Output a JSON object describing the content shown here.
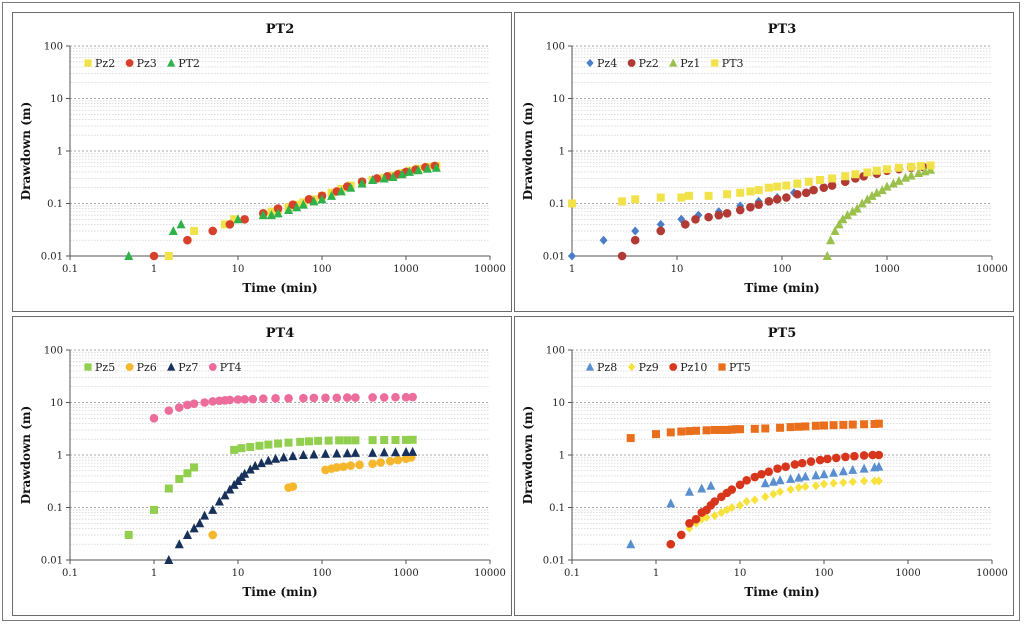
{
  "chart_data": [
    {
      "type": "scatter",
      "title": "PT2",
      "xlabel": "Time (min)",
      "ylabel": "Drawdown (m)",
      "xscale": "log",
      "yscale": "log",
      "xlim": [
        0.1,
        10000
      ],
      "ylim": [
        0.01,
        100
      ],
      "xticks": [
        "0.1",
        "1",
        "10",
        "100",
        "1000",
        "10000"
      ],
      "yticks": [
        "0.01",
        "0.1",
        "1",
        "10",
        "100"
      ],
      "legend_position": "top-left",
      "series": [
        {
          "name": "Pz2",
          "marker": "square",
          "color": "#f2e24a",
          "x": [
            1.5,
            3,
            7,
            9,
            20,
            25,
            30,
            40,
            50,
            60,
            80,
            100,
            130,
            170,
            220,
            300,
            400,
            550,
            700,
            900,
            1100,
            1400,
            1800,
            2300
          ],
          "y": [
            0.01,
            0.03,
            0.04,
            0.05,
            0.06,
            0.07,
            0.075,
            0.085,
            0.095,
            0.105,
            0.12,
            0.14,
            0.16,
            0.19,
            0.22,
            0.25,
            0.28,
            0.31,
            0.34,
            0.38,
            0.42,
            0.46,
            0.5,
            0.52
          ]
        },
        {
          "name": "Pz3",
          "marker": "circle",
          "color": "#d7402a",
          "x": [
            1,
            2.5,
            5,
            8,
            12,
            20,
            30,
            45,
            70,
            100,
            150,
            200,
            300,
            450,
            600,
            800,
            1000,
            1300,
            1700,
            2200
          ],
          "y": [
            0.01,
            0.02,
            0.03,
            0.04,
            0.05,
            0.065,
            0.08,
            0.095,
            0.12,
            0.14,
            0.17,
            0.21,
            0.26,
            0.3,
            0.33,
            0.36,
            0.4,
            0.44,
            0.49,
            0.52
          ]
        },
        {
          "name": "PT2",
          "marker": "triangle",
          "color": "#2fb24c",
          "x": [
            0.5,
            1.7,
            2.1,
            10,
            20,
            25,
            30,
            40,
            50,
            60,
            80,
            100,
            130,
            170,
            220,
            300,
            400,
            550,
            700,
            900,
            1100,
            1400,
            1800,
            2300
          ],
          "y": [
            0.01,
            0.03,
            0.04,
            0.05,
            0.06,
            0.06,
            0.065,
            0.075,
            0.085,
            0.095,
            0.11,
            0.12,
            0.14,
            0.17,
            0.2,
            0.24,
            0.28,
            0.3,
            0.32,
            0.36,
            0.4,
            0.43,
            0.46,
            0.48
          ]
        }
      ]
    },
    {
      "type": "scatter",
      "title": "PT3",
      "xlabel": "Time (min)",
      "ylabel": "Drawdown (m)",
      "xscale": "log",
      "yscale": "log",
      "xlim": [
        1,
        10000
      ],
      "ylim": [
        0.01,
        100
      ],
      "xticks": [
        "1",
        "10",
        "100",
        "1000",
        "10000"
      ],
      "yticks": [
        "0.01",
        "0.1",
        "1",
        "10",
        "100"
      ],
      "legend_position": "top-left",
      "series": [
        {
          "name": "Pz4",
          "marker": "diamond",
          "color": "#4a7ec7",
          "x": [
            1,
            2,
            4,
            7,
            11,
            16,
            25,
            40,
            60,
            90,
            130
          ],
          "y": [
            0.01,
            0.02,
            0.03,
            0.04,
            0.05,
            0.06,
            0.07,
            0.09,
            0.11,
            0.13,
            0.16
          ]
        },
        {
          "name": "Pz2",
          "marker": "circle",
          "color": "#b23a34",
          "x": [
            3,
            4,
            7,
            12,
            15,
            20,
            25,
            30,
            40,
            50,
            60,
            75,
            90,
            110,
            140,
            170,
            200,
            250,
            300,
            400,
            500,
            600,
            800,
            1000,
            1300,
            1700,
            2200
          ],
          "y": [
            0.01,
            0.02,
            0.03,
            0.04,
            0.05,
            0.055,
            0.06,
            0.065,
            0.075,
            0.085,
            0.095,
            0.11,
            0.12,
            0.13,
            0.15,
            0.16,
            0.18,
            0.2,
            0.22,
            0.26,
            0.3,
            0.33,
            0.37,
            0.42,
            0.45,
            0.48,
            0.5
          ]
        },
        {
          "name": "Pz1",
          "marker": "triangle",
          "color": "#9bc14c",
          "x": [
            270,
            290,
            320,
            350,
            380,
            420,
            470,
            520,
            580,
            650,
            720,
            800,
            900,
            1000,
            1150,
            1300,
            1500,
            1700,
            2000,
            2300,
            2600
          ],
          "y": [
            0.01,
            0.02,
            0.03,
            0.04,
            0.05,
            0.06,
            0.07,
            0.08,
            0.1,
            0.12,
            0.14,
            0.16,
            0.18,
            0.21,
            0.24,
            0.27,
            0.31,
            0.34,
            0.38,
            0.41,
            0.44
          ]
        },
        {
          "name": "PT3",
          "marker": "square",
          "color": "#f2e24a",
          "x": [
            1,
            3,
            4,
            7,
            11,
            13,
            20,
            30,
            40,
            50,
            60,
            75,
            90,
            110,
            140,
            180,
            230,
            300,
            400,
            500,
            650,
            800,
            1000,
            1300,
            1700,
            2100,
            2600
          ],
          "y": [
            0.1,
            0.11,
            0.12,
            0.13,
            0.13,
            0.14,
            0.14,
            0.15,
            0.16,
            0.17,
            0.18,
            0.2,
            0.21,
            0.22,
            0.24,
            0.26,
            0.28,
            0.3,
            0.33,
            0.36,
            0.39,
            0.42,
            0.45,
            0.48,
            0.5,
            0.52,
            0.53
          ]
        }
      ]
    },
    {
      "type": "scatter",
      "title": "PT4",
      "xlabel": "Time (min)",
      "ylabel": "Drawdown (m)",
      "xscale": "log",
      "yscale": "log",
      "xlim": [
        0.1,
        10000
      ],
      "ylim": [
        0.01,
        100
      ],
      "xticks": [
        "0.1",
        "1",
        "10",
        "100",
        "1000",
        "10000"
      ],
      "yticks": [
        "0.01",
        "0.1",
        "1",
        "10",
        "100"
      ],
      "legend_position": "top-left",
      "series": [
        {
          "name": "Pz5",
          "marker": "square",
          "color": "#92cf4f",
          "x": [
            0.5,
            1,
            1.5,
            2,
            2.5,
            3,
            9,
            11,
            14,
            18,
            23,
            30,
            40,
            55,
            70,
            90,
            120,
            160,
            200,
            250,
            400,
            550,
            750,
            1000,
            1200
          ],
          "y": [
            0.03,
            0.09,
            0.23,
            0.35,
            0.45,
            0.58,
            1.25,
            1.35,
            1.42,
            1.5,
            1.58,
            1.65,
            1.72,
            1.78,
            1.82,
            1.86,
            1.88,
            1.9,
            1.9,
            1.9,
            1.92,
            1.93,
            1.93,
            1.94,
            1.95
          ]
        },
        {
          "name": "Pz6",
          "marker": "circle",
          "color": "#f5b72b",
          "x": [
            5,
            40,
            45,
            110,
            130,
            150,
            180,
            220,
            280,
            400,
            500,
            650,
            800,
            1000,
            1150
          ],
          "y": [
            0.03,
            0.24,
            0.25,
            0.52,
            0.55,
            0.58,
            0.6,
            0.63,
            0.65,
            0.68,
            0.72,
            0.76,
            0.8,
            0.85,
            0.9
          ]
        },
        {
          "name": "Pz7",
          "marker": "triangle",
          "color": "#17315a",
          "x": [
            1.5,
            2,
            2.5,
            3,
            3.5,
            4,
            5,
            6,
            7,
            8,
            9,
            10,
            11,
            12,
            14,
            16,
            19,
            23,
            28,
            35,
            45,
            60,
            80,
            110,
            150,
            200,
            250,
            400,
            550,
            750,
            1000,
            1200
          ],
          "y": [
            0.01,
            0.02,
            0.03,
            0.04,
            0.05,
            0.07,
            0.09,
            0.13,
            0.17,
            0.22,
            0.27,
            0.32,
            0.38,
            0.44,
            0.53,
            0.62,
            0.7,
            0.78,
            0.85,
            0.9,
            0.95,
            1.0,
            1.02,
            1.05,
            1.07,
            1.08,
            1.1,
            1.1,
            1.12,
            1.13,
            1.14,
            1.15
          ]
        },
        {
          "name": "PT4",
          "marker": "circle",
          "color": "#ec6c9c",
          "x": [
            1,
            1.5,
            2,
            2.5,
            3,
            4,
            5,
            6,
            7,
            8,
            10,
            12,
            15,
            20,
            28,
            40,
            60,
            80,
            110,
            150,
            200,
            250,
            400,
            550,
            750,
            1000,
            1200
          ],
          "y": [
            5,
            7,
            8,
            9,
            9.5,
            10,
            10.5,
            10.8,
            11,
            11.2,
            11.4,
            11.5,
            11.6,
            11.8,
            12,
            12,
            12.1,
            12.2,
            12.3,
            12.3,
            12.4,
            12.4,
            12.5,
            12.5,
            12.6,
            12.6,
            12.7
          ]
        }
      ]
    },
    {
      "type": "scatter",
      "title": "PT5",
      "xlabel": "Time (min)",
      "ylabel": "Drawdown (m)",
      "xscale": "log",
      "yscale": "log",
      "xlim": [
        0.1,
        10000
      ],
      "ylim": [
        0.01,
        100
      ],
      "xticks": [
        "0.1",
        "1",
        "10",
        "100",
        "1000",
        "10000"
      ],
      "yticks": [
        "0.01",
        "0.1",
        "1",
        "10",
        "100"
      ],
      "legend_position": "top-left",
      "series": [
        {
          "name": "Pz8",
          "marker": "triangle",
          "color": "#5a8fcf",
          "x": [
            0.5,
            1.5,
            2.5,
            3.5,
            4.5,
            20,
            25,
            30,
            40,
            50,
            60,
            80,
            100,
            130,
            170,
            220,
            300,
            400,
            450
          ],
          "y": [
            0.02,
            0.12,
            0.2,
            0.23,
            0.26,
            0.29,
            0.31,
            0.33,
            0.35,
            0.37,
            0.39,
            0.41,
            0.43,
            0.46,
            0.49,
            0.52,
            0.55,
            0.58,
            0.6
          ]
        },
        {
          "name": "Pz9",
          "marker": "diamond",
          "color": "#f6e23a",
          "x": [
            2,
            2.5,
            3,
            3.5,
            4,
            5,
            6,
            7,
            8,
            10,
            12,
            15,
            20,
            25,
            30,
            40,
            50,
            60,
            80,
            100,
            130,
            170,
            220,
            300,
            400,
            450
          ],
          "y": [
            0.03,
            0.04,
            0.05,
            0.06,
            0.065,
            0.07,
            0.08,
            0.09,
            0.1,
            0.11,
            0.13,
            0.14,
            0.16,
            0.18,
            0.2,
            0.22,
            0.24,
            0.25,
            0.26,
            0.28,
            0.29,
            0.3,
            0.31,
            0.32,
            0.32,
            0.32
          ]
        },
        {
          "name": "Pz10",
          "marker": "circle",
          "color": "#d8361c",
          "x": [
            1.5,
            2,
            2.5,
            3,
            3.5,
            4,
            4.5,
            5,
            6,
            7,
            8,
            10,
            12,
            15,
            18,
            22,
            28,
            35,
            45,
            55,
            70,
            90,
            110,
            140,
            180,
            230,
            300,
            380,
            450
          ],
          "y": [
            0.02,
            0.03,
            0.05,
            0.06,
            0.08,
            0.09,
            0.11,
            0.13,
            0.16,
            0.19,
            0.22,
            0.27,
            0.33,
            0.38,
            0.43,
            0.48,
            0.55,
            0.6,
            0.66,
            0.7,
            0.75,
            0.8,
            0.84,
            0.88,
            0.92,
            0.95,
            0.98,
            1.0,
            1.0
          ]
        },
        {
          "name": "PT5",
          "marker": "square",
          "color": "#e96f1c",
          "x": [
            0.5,
            1,
            1.5,
            2,
            2.5,
            3,
            4,
            5,
            6,
            7,
            8,
            9,
            10,
            15,
            20,
            30,
            40,
            50,
            60,
            80,
            100,
            130,
            170,
            220,
            300,
            400,
            450
          ],
          "y": [
            2.1,
            2.5,
            2.7,
            2.8,
            2.85,
            2.9,
            2.95,
            3,
            3,
            3,
            3.05,
            3.1,
            3.1,
            3.15,
            3.2,
            3.3,
            3.4,
            3.45,
            3.5,
            3.6,
            3.65,
            3.7,
            3.75,
            3.8,
            3.85,
            3.9,
            3.95
          ]
        }
      ]
    }
  ]
}
